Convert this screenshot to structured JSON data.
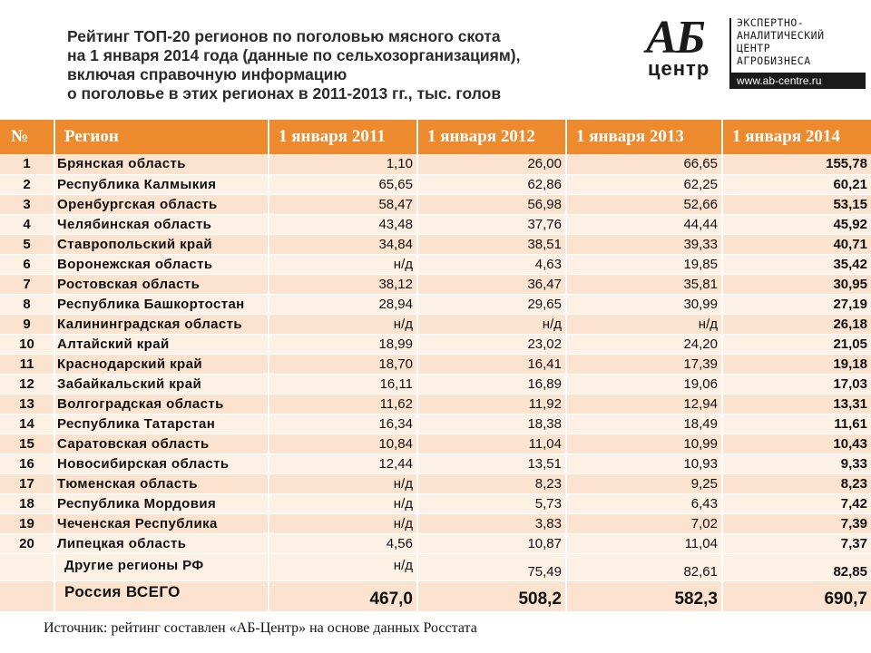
{
  "title": {
    "line1": "Рейтинг ТОП-20 регионов по поголовью мясного скота",
    "line2": "на 1 января 2014 года (данные по сельхозорганизациям),",
    "line3": "включая справочную информацию",
    "line4": "о поголовье в этих регионах в 2011-2013 гг., тыс. голов"
  },
  "logo": {
    "ab": "АБ",
    "centr": "центр",
    "text_line1": "ЭКСПЕРТНО-",
    "text_line2": "АНАЛИТИЧЕСКИЙ",
    "text_line3": "ЦЕНТР",
    "text_line4": "АГРОБИЗНЕСА",
    "url": "www.ab-centre.ru"
  },
  "table": {
    "headers": [
      "№",
      "Регион",
      "1 января 2011",
      "1 января 2012",
      "1 января 2013",
      "1 января 2014"
    ],
    "rows": [
      {
        "num": "1",
        "region": "Брянская область",
        "y2011": "1,10",
        "y2012": "26,00",
        "y2013": "66,65",
        "y2014": "155,78"
      },
      {
        "num": "2",
        "region": "Республика Калмыкия",
        "y2011": "65,65",
        "y2012": "62,86",
        "y2013": "62,25",
        "y2014": "60,21"
      },
      {
        "num": "3",
        "region": "Оренбургская область",
        "y2011": "58,47",
        "y2012": "56,98",
        "y2013": "52,66",
        "y2014": "53,15"
      },
      {
        "num": "4",
        "region": "Челябинская область",
        "y2011": "43,48",
        "y2012": "37,76",
        "y2013": "44,44",
        "y2014": "45,92"
      },
      {
        "num": "5",
        "region": "Ставропольский край",
        "y2011": "34,84",
        "y2012": "38,51",
        "y2013": "39,33",
        "y2014": "40,71"
      },
      {
        "num": "6",
        "region": "Воронежская область",
        "y2011": "н/д",
        "y2012": "4,63",
        "y2013": "19,85",
        "y2014": "35,42"
      },
      {
        "num": "7",
        "region": "Ростовская область",
        "y2011": "38,12",
        "y2012": "36,47",
        "y2013": "35,81",
        "y2014": "30,95"
      },
      {
        "num": "8",
        "region": "Республика Башкортостан",
        "y2011": "28,94",
        "y2012": "29,65",
        "y2013": "30,99",
        "y2014": "27,19"
      },
      {
        "num": "9",
        "region": "Калининградская область",
        "y2011": "н/д",
        "y2012": "н/д",
        "y2013": "н/д",
        "y2014": "26,18"
      },
      {
        "num": "10",
        "region": "Алтайский край",
        "y2011": "18,99",
        "y2012": "23,02",
        "y2013": "24,20",
        "y2014": "21,05"
      },
      {
        "num": "11",
        "region": "Краснодарский край",
        "y2011": "18,70",
        "y2012": "16,41",
        "y2013": "17,39",
        "y2014": "19,18"
      },
      {
        "num": "12",
        "region": "Забайкальский край",
        "y2011": "16,11",
        "y2012": "16,89",
        "y2013": "19,06",
        "y2014": "17,03"
      },
      {
        "num": "13",
        "region": "Волгоградская область",
        "y2011": "11,62",
        "y2012": "11,92",
        "y2013": "12,94",
        "y2014": "13,31"
      },
      {
        "num": "14",
        "region": "Республика Татарстан",
        "y2011": "16,34",
        "y2012": "18,38",
        "y2013": "18,49",
        "y2014": "11,61"
      },
      {
        "num": "15",
        "region": "Саратовская область",
        "y2011": "10,84",
        "y2012": "11,04",
        "y2013": "10,99",
        "y2014": "10,43"
      },
      {
        "num": "16",
        "region": "Новосибирская область",
        "y2011": "12,44",
        "y2012": "13,51",
        "y2013": "10,93",
        "y2014": "9,33"
      },
      {
        "num": "17",
        "region": "Тюменская область",
        "y2011": "н/д",
        "y2012": "8,23",
        "y2013": "9,25",
        "y2014": "8,23"
      },
      {
        "num": "18",
        "region": "Республика Мордовия",
        "y2011": "н/д",
        "y2012": "5,73",
        "y2013": "6,43",
        "y2014": "7,42"
      },
      {
        "num": "19",
        "region": "Чеченская Республика",
        "y2011": "н/д",
        "y2012": "3,83",
        "y2013": "7,02",
        "y2014": "7,39"
      },
      {
        "num": "20",
        "region": "Липецкая область",
        "y2011": "4,56",
        "y2012": "10,87",
        "y2013": "11,04",
        "y2014": "7,37"
      }
    ],
    "other": {
      "region": "Другие регионы РФ",
      "y2011": "н/д",
      "y2012": "75,49",
      "y2013": "82,61",
      "y2014": "82,85"
    },
    "total": {
      "region": "Россия ВСЕГО",
      "y2011": "467,0",
      "y2012": "508,2",
      "y2013": "582,3",
      "y2014": "690,7"
    }
  },
  "source": "Источник: рейтинг составлен «АБ-Центр» на основе данных Росстата",
  "colors": {
    "header_orange": "#ee8a2e",
    "row_light": "#fdf0e5",
    "row_mid": "#fbe3cf"
  }
}
